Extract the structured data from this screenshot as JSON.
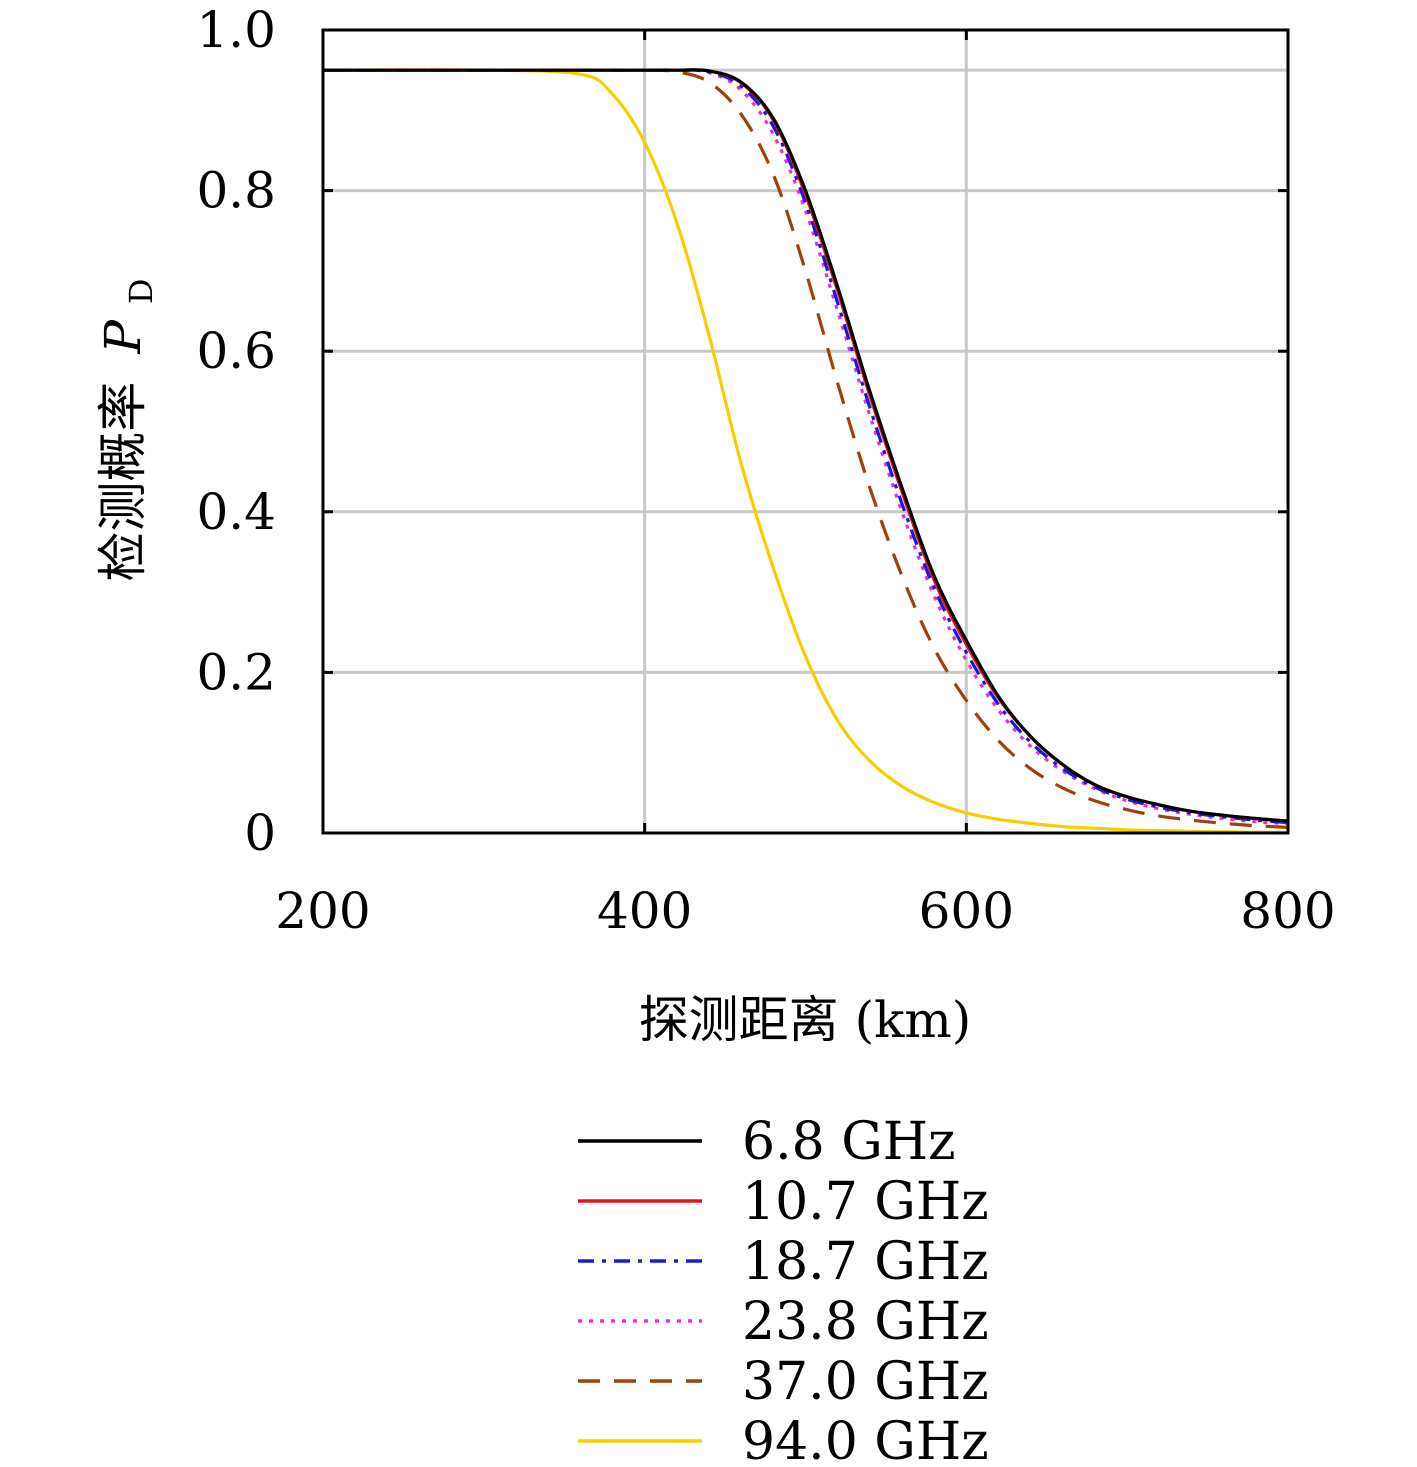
{
  "chart_data": {
    "type": "line",
    "xlabel": "探测距离 (km)",
    "ylabel": "检测概率",
    "ylabel_symbol": "P",
    "ylabel_subscript": "D",
    "xlim": [
      200,
      800
    ],
    "ylim": [
      0,
      1.0
    ],
    "xticks": [
      200,
      400,
      600,
      800
    ],
    "xtick_labels": [
      "200",
      "400",
      "600",
      "800"
    ],
    "yticks": [
      0,
      0.2,
      0.4,
      0.6,
      0.8,
      1.0
    ],
    "ytick_labels": [
      "0",
      "0.2",
      "0.4",
      "0.6",
      "0.8",
      "1.0"
    ],
    "grid": true,
    "legend_position": "bottom-center",
    "x": [
      200,
      300,
      360,
      380,
      400,
      420,
      440,
      460,
      480,
      500,
      520,
      540,
      560,
      580,
      600,
      620,
      640,
      660,
      680,
      700,
      720,
      740,
      760,
      780,
      800
    ],
    "series": [
      {
        "name": "6.8 GHz",
        "color": "#000000",
        "dash": "solid",
        "values": [
          0.95,
          0.95,
          0.95,
          0.95,
          0.95,
          0.95,
          0.949,
          0.935,
          0.89,
          0.8,
          0.68,
          0.55,
          0.43,
          0.32,
          0.24,
          0.17,
          0.12,
          0.085,
          0.06,
          0.045,
          0.035,
          0.027,
          0.022,
          0.018,
          0.015
        ]
      },
      {
        "name": "10.7 GHz",
        "color": "#e8141a",
        "dash": "solid",
        "values": [
          0.95,
          0.95,
          0.95,
          0.95,
          0.95,
          0.95,
          0.949,
          0.934,
          0.888,
          0.795,
          0.675,
          0.545,
          0.425,
          0.315,
          0.235,
          0.168,
          0.12,
          0.085,
          0.06,
          0.045,
          0.035,
          0.027,
          0.022,
          0.018,
          0.015
        ]
      },
      {
        "name": "18.7 GHz",
        "color": "#1a1ad6",
        "dash": "dashdot",
        "values": [
          0.95,
          0.95,
          0.95,
          0.95,
          0.95,
          0.95,
          0.948,
          0.93,
          0.88,
          0.785,
          0.66,
          0.53,
          0.41,
          0.305,
          0.225,
          0.16,
          0.113,
          0.08,
          0.057,
          0.042,
          0.032,
          0.025,
          0.02,
          0.016,
          0.013
        ]
      },
      {
        "name": "23.8 GHz",
        "color": "#e62ee6",
        "dash": "dotted",
        "values": [
          0.95,
          0.95,
          0.95,
          0.95,
          0.95,
          0.95,
          0.947,
          0.925,
          0.87,
          0.775,
          0.65,
          0.52,
          0.4,
          0.295,
          0.215,
          0.153,
          0.108,
          0.077,
          0.055,
          0.04,
          0.03,
          0.023,
          0.018,
          0.014,
          0.012
        ]
      },
      {
        "name": "37.0 GHz",
        "color": "#a0410d",
        "dash": "dashed",
        "values": [
          0.95,
          0.95,
          0.95,
          0.95,
          0.95,
          0.948,
          0.935,
          0.895,
          0.82,
          0.7,
          0.56,
          0.43,
          0.32,
          0.23,
          0.165,
          0.115,
          0.08,
          0.056,
          0.04,
          0.029,
          0.021,
          0.016,
          0.012,
          0.009,
          0.007
        ]
      },
      {
        "name": "94.0 GHz",
        "color": "#f5d000",
        "dash": "solid",
        "values": [
          0.95,
          0.95,
          0.945,
          0.92,
          0.86,
          0.76,
          0.62,
          0.46,
          0.33,
          0.22,
          0.14,
          0.09,
          0.058,
          0.038,
          0.025,
          0.017,
          0.012,
          0.008,
          0.006,
          0.004,
          0.003,
          0.002,
          0.0015,
          0.001,
          0.0008
        ]
      }
    ]
  }
}
